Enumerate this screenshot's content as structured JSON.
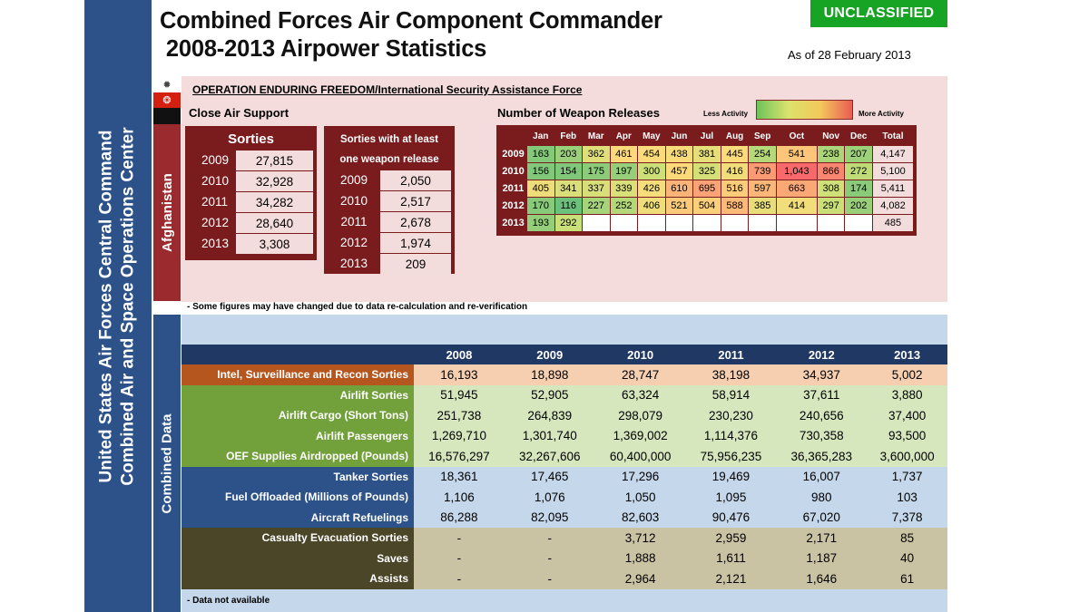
{
  "side_title": [
    "United States Air Forces Central Command",
    "Combined Air and Space Operations Center"
  ],
  "title": [
    "Combined Forces Air Component Commander",
    " 2008-2013 Airpower Statistics"
  ],
  "classification": "UNCLASSIFIED",
  "as_of": "As of 28 February 2013",
  "afghanistan": {
    "label": "Afghanistan",
    "operation": "OPERATION ENDURING FREEDOM/International Security Assistance Force",
    "cas_title": "Close Air Support",
    "sorties": {
      "header": "Sorties",
      "rows": [
        {
          "year": "2009",
          "value": "27,815"
        },
        {
          "year": "2010",
          "value": "32,928"
        },
        {
          "year": "2011",
          "value": "34,282"
        },
        {
          "year": "2012",
          "value": "28,640"
        },
        {
          "year": "2013",
          "value": "3,308"
        }
      ]
    },
    "weapon_sorties": {
      "header_line1": "Sorties with at least",
      "header_line2": "one weapon release",
      "rows": [
        {
          "year": "2009",
          "value": "2,050"
        },
        {
          "year": "2010",
          "value": "2,517"
        },
        {
          "year": "2011",
          "value": "2,678"
        },
        {
          "year": "2012",
          "value": "1,974"
        },
        {
          "year": "2013",
          "value": "209"
        }
      ]
    },
    "weapon_releases": {
      "title": "Number of Weapon Releases",
      "legend_less": "Less Activity",
      "legend_more": "More Activity",
      "months": [
        "Jan",
        "Feb",
        "Mar",
        "Apr",
        "May",
        "Jun",
        "Jul",
        "Aug",
        "Sep",
        "Oct",
        "Nov",
        "Dec",
        "Total"
      ],
      "rows": [
        {
          "year": "2009",
          "values": [
            "163",
            "203",
            "362",
            "461",
            "454",
            "438",
            "381",
            "445",
            "254",
            "541",
            "238",
            "207"
          ],
          "total": "4,147"
        },
        {
          "year": "2010",
          "values": [
            "156",
            "154",
            "175",
            "197",
            "300",
            "457",
            "325",
            "416",
            "739",
            "1,043",
            "866",
            "272"
          ],
          "total": "5,100"
        },
        {
          "year": "2011",
          "values": [
            "405",
            "341",
            "337",
            "339",
            "426",
            "610",
            "695",
            "516",
            "597",
            "663",
            "308",
            "174"
          ],
          "total": "5,411"
        },
        {
          "year": "2012",
          "values": [
            "170",
            "116",
            "227",
            "252",
            "406",
            "521",
            "504",
            "588",
            "385",
            "414",
            "297",
            "202"
          ],
          "total": "4,082"
        },
        {
          "year": "2013",
          "values": [
            "193",
            "292"
          ],
          "total": "485"
        }
      ]
    },
    "note": "- Some figures may have changed due to data re-calculation and re-verification"
  },
  "combined": {
    "label": "Combined Data",
    "years": [
      "2008",
      "2009",
      "2010",
      "2011",
      "2012",
      "2013"
    ],
    "rows": [
      {
        "group": "isr",
        "label": "Intel, Surveillance and Recon Sorties",
        "values": [
          "16,193",
          "18,898",
          "28,747",
          "38,198",
          "34,937",
          "5,002"
        ]
      },
      {
        "group": "air",
        "label": "Airlift Sorties",
        "values": [
          "51,945",
          "52,905",
          "63,324",
          "58,914",
          "37,611",
          "3,880"
        ]
      },
      {
        "group": "air",
        "label": "Airlift Cargo (Short Tons)",
        "values": [
          "251,738",
          "264,839",
          "298,079",
          "230,230",
          "240,656",
          "37,400"
        ]
      },
      {
        "group": "air",
        "label": "Airlift Passengers",
        "values": [
          "1,269,710",
          "1,301,740",
          "1,369,002",
          "1,114,376",
          "730,358",
          "93,500"
        ]
      },
      {
        "group": "air",
        "label": "OEF Supplies Airdropped (Pounds)",
        "values": [
          "16,576,297",
          "32,267,606",
          "60,400,000",
          "75,956,235",
          "36,365,283",
          "3,600,000"
        ]
      },
      {
        "group": "tank",
        "label": "Tanker Sorties",
        "values": [
          "18,361",
          "17,465",
          "17,296",
          "19,469",
          "16,007",
          "1,737"
        ]
      },
      {
        "group": "tank",
        "label": "Fuel Offloaded (Millions of Pounds)",
        "values": [
          "1,106",
          "1,076",
          "1,050",
          "1,095",
          "980",
          "103"
        ]
      },
      {
        "group": "tank",
        "label": "Aircraft Refuelings",
        "values": [
          "86,288",
          "82,095",
          "82,603",
          "90,476",
          "67,020",
          "7,378"
        ]
      },
      {
        "group": "cas",
        "label": "Casualty Evacuation Sorties",
        "values": [
          "-",
          "-",
          "3,712",
          "2,959",
          "2,171",
          "85"
        ]
      },
      {
        "group": "cas",
        "label": "Saves",
        "values": [
          "-",
          "-",
          "1,888",
          "1,611",
          "1,187",
          "40"
        ]
      },
      {
        "group": "cas",
        "label": "Assists",
        "values": [
          "-",
          "-",
          "2,964",
          "2,121",
          "1,646",
          "61"
        ]
      }
    ],
    "note": "- Data not available"
  }
}
